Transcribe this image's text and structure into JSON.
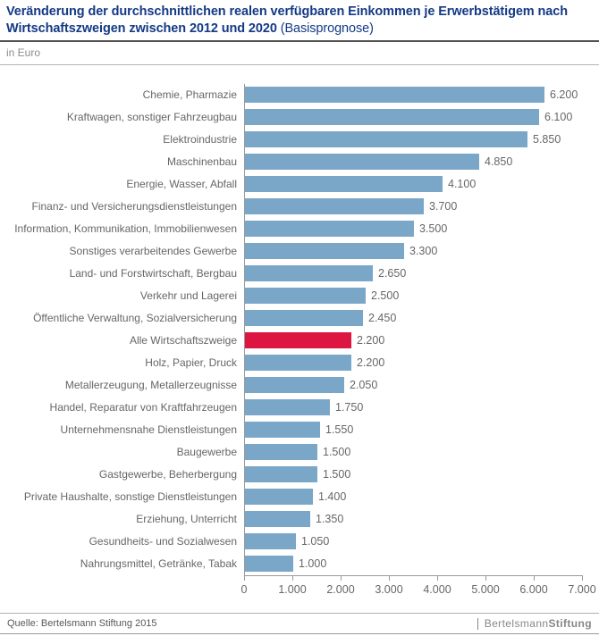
{
  "header": {
    "title_main": "Veränderung der durchschnittlichen realen verfügbaren Einkommen je Erwerbstätigem nach Wirtschaftszweigen zwischen 2012 und 2020",
    "title_suffix": "(Basisprognose)",
    "unit_label": "in Euro"
  },
  "chart_data": {
    "type": "bar",
    "orientation": "horizontal",
    "title": "Veränderung der durchschnittlichen realen verfügbaren Einkommen je Erwerbstätigem nach Wirtschaftszweigen zwischen 2012 und 2020 (Basisprognose)",
    "xlabel": "in Euro",
    "ylabel": "",
    "xlim": [
      0,
      7000
    ],
    "grid": false,
    "categories": [
      "Chemie, Pharmazie",
      "Kraftwagen, sonstiger Fahrzeugbau",
      "Elektroindustrie",
      "Maschinenbau",
      "Energie, Wasser, Abfall",
      "Finanz- und Versicherungsdienstleistungen",
      "Information, Kommunikation, Immobilienwesen",
      "Sonstiges verarbeitendes Gewerbe",
      "Land- und Forstwirtschaft, Bergbau",
      "Verkehr und Lagerei",
      "Öffentliche Verwaltung, Sozialversicherung",
      "Alle Wirtschaftszweige",
      "Holz, Papier, Druck",
      "Metallerzeugung, Metallerzeugnisse",
      "Handel, Reparatur von Kraftfahrzeugen",
      "Unternehmensnahe Dienstleistungen",
      "Baugewerbe",
      "Gastgewerbe, Beherbergung",
      "Private Haushalte, sonstige Dienstleistungen",
      "Erziehung, Unterricht",
      "Gesundheits- und Sozialwesen",
      "Nahrungsmittel, Getränke, Tabak"
    ],
    "values": [
      6200,
      6100,
      5850,
      4850,
      4100,
      3700,
      3500,
      3300,
      2650,
      2500,
      2450,
      2200,
      2200,
      2050,
      1750,
      1550,
      1500,
      1500,
      1400,
      1350,
      1050,
      1000
    ],
    "value_labels": [
      "6.200",
      "6.100",
      "5.850",
      "4.850",
      "4.100",
      "3.700",
      "3.500",
      "3.300",
      "2.650",
      "2.500",
      "2.450",
      "2.200",
      "2.200",
      "2.050",
      "1.750",
      "1.550",
      "1.500",
      "1.500",
      "1.400",
      "1.350",
      "1.050",
      "1.000"
    ],
    "highlight_index": 11,
    "highlight_category": "Alle Wirtschaftszweige",
    "colors": {
      "bar": "#7aa7c8",
      "highlight": "#dd1541"
    },
    "x_ticks": [
      "0",
      "1.000",
      "2.000",
      "3.000",
      "4.000",
      "5.000",
      "6.000",
      "7.000"
    ],
    "x_tick_values": [
      0,
      1000,
      2000,
      3000,
      4000,
      5000,
      6000,
      7000
    ]
  },
  "footer": {
    "source": "Quelle: Bertelsmann Stiftung 2015",
    "logo_regular": "Bertelsmann",
    "logo_bold": "Stiftung"
  }
}
